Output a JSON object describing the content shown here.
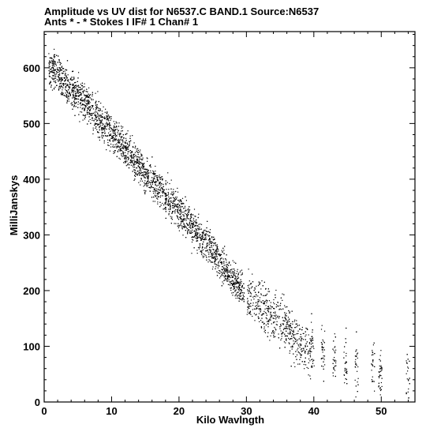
{
  "header": {
    "line1": "Amplitude vs UV dist for N6537.C BAND.1   Source:N6537",
    "line2": "Ants * - *    Stokes I   IF# 1   Chan# 1"
  },
  "chart_data": {
    "type": "scatter",
    "title": "Amplitude vs UV dist for N6537.C BAND.1   Source:N6537",
    "subtitle": "Ants * - *    Stokes I   IF# 1   Chan# 1",
    "xlabel": "Kilo Wavlngth",
    "ylabel": "MilliJanskys",
    "xlim": [
      0,
      55
    ],
    "ylim": [
      0,
      665
    ],
    "xticks": [
      0,
      10,
      20,
      30,
      40,
      50
    ],
    "yticks": [
      0,
      100,
      200,
      300,
      400,
      500,
      600
    ],
    "grid": false,
    "marker_color": "#000000",
    "trend": [
      {
        "x": 1,
        "y": 600
      },
      {
        "x": 3,
        "y": 575
      },
      {
        "x": 5,
        "y": 550
      },
      {
        "x": 7,
        "y": 525
      },
      {
        "x": 9,
        "y": 495
      },
      {
        "x": 11,
        "y": 470
      },
      {
        "x": 13,
        "y": 440
      },
      {
        "x": 15,
        "y": 410
      },
      {
        "x": 17,
        "y": 385
      },
      {
        "x": 19,
        "y": 355
      },
      {
        "x": 21,
        "y": 330
      },
      {
        "x": 23,
        "y": 300
      },
      {
        "x": 25,
        "y": 270
      },
      {
        "x": 27,
        "y": 235
      },
      {
        "x": 29,
        "y": 205
      },
      {
        "x": 31,
        "y": 180
      },
      {
        "x": 33,
        "y": 165
      },
      {
        "x": 35,
        "y": 145
      },
      {
        "x": 37,
        "y": 120
      },
      {
        "x": 39,
        "y": 100
      },
      {
        "x": 41,
        "y": 90
      },
      {
        "x": 43,
        "y": 80
      },
      {
        "x": 45,
        "y": 70
      },
      {
        "x": 47,
        "y": 65
      },
      {
        "x": 49,
        "y": 60
      },
      {
        "x": 51,
        "y": 55
      },
      {
        "x": 54,
        "y": 55
      }
    ]
  }
}
